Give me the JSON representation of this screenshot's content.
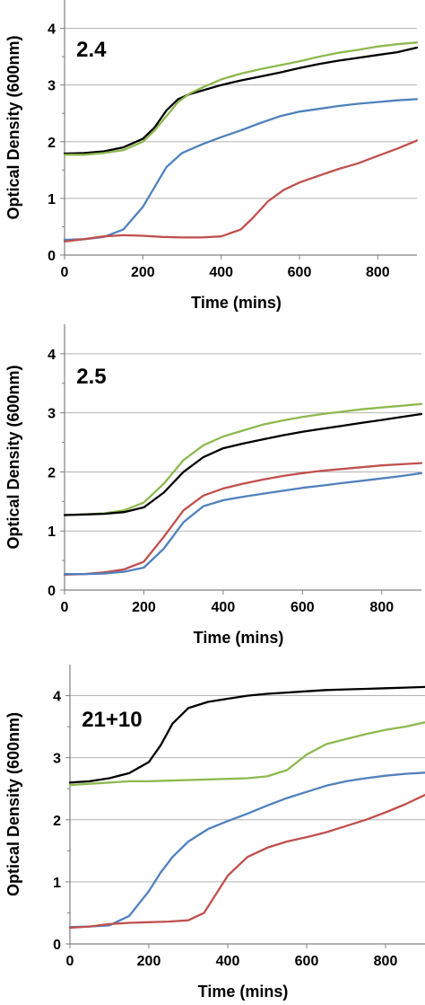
{
  "chart_data": [
    {
      "type": "line",
      "title": "2.4",
      "xlabel": "Time (mins)",
      "ylabel": "Optical Density (600nm)",
      "xlim": [
        0,
        900
      ],
      "ylim": [
        0,
        4.5
      ],
      "xticks": [
        0,
        200,
        400,
        600,
        800
      ],
      "yticks": [
        0,
        1,
        2,
        3,
        4
      ],
      "grid": "horizontal",
      "series": [
        {
          "color": "#000000",
          "x": [
            0,
            50,
            100,
            150,
            200,
            230,
            260,
            290,
            320,
            350,
            400,
            450,
            500,
            550,
            600,
            650,
            700,
            750,
            800,
            850,
            900
          ],
          "y": [
            1.79,
            1.8,
            1.83,
            1.9,
            2.05,
            2.25,
            2.55,
            2.75,
            2.84,
            2.9,
            3.0,
            3.08,
            3.15,
            3.22,
            3.3,
            3.37,
            3.43,
            3.48,
            3.53,
            3.58,
            3.66
          ]
        },
        {
          "color": "#8DB94F",
          "x": [
            0,
            50,
            100,
            150,
            200,
            230,
            260,
            290,
            320,
            350,
            400,
            450,
            500,
            550,
            600,
            650,
            700,
            750,
            800,
            850,
            900
          ],
          "y": [
            1.77,
            1.77,
            1.8,
            1.85,
            2.0,
            2.2,
            2.45,
            2.7,
            2.85,
            2.95,
            3.1,
            3.2,
            3.28,
            3.35,
            3.42,
            3.5,
            3.57,
            3.62,
            3.68,
            3.72,
            3.75
          ]
        },
        {
          "color": "#4F81BD",
          "x": [
            0,
            50,
            100,
            150,
            200,
            230,
            260,
            300,
            350,
            400,
            450,
            500,
            550,
            600,
            650,
            700,
            750,
            800,
            850,
            900
          ],
          "y": [
            0.27,
            0.28,
            0.32,
            0.45,
            0.85,
            1.2,
            1.55,
            1.8,
            1.95,
            2.08,
            2.2,
            2.33,
            2.45,
            2.53,
            2.58,
            2.63,
            2.67,
            2.7,
            2.73,
            2.75
          ]
        },
        {
          "color": "#C0504D",
          "x": [
            0,
            50,
            100,
            150,
            200,
            250,
            300,
            350,
            400,
            450,
            480,
            520,
            560,
            600,
            650,
            700,
            750,
            800,
            850,
            900
          ],
          "y": [
            0.24,
            0.28,
            0.33,
            0.35,
            0.34,
            0.32,
            0.31,
            0.31,
            0.33,
            0.45,
            0.65,
            0.95,
            1.15,
            1.28,
            1.4,
            1.52,
            1.62,
            1.75,
            1.88,
            2.02
          ]
        }
      ]
    },
    {
      "type": "line",
      "title": "2.5",
      "xlabel": "Time (mins)",
      "ylabel": "Optical Density (600nm)",
      "xlim": [
        0,
        900
      ],
      "ylim": [
        0,
        4.5
      ],
      "xticks": [
        0,
        200,
        400,
        600,
        800
      ],
      "yticks": [
        0,
        1,
        2,
        3,
        4
      ],
      "grid": "horizontal",
      "series": [
        {
          "color": "#8DB94F",
          "x": [
            0,
            50,
            100,
            150,
            200,
            250,
            300,
            350,
            400,
            450,
            500,
            550,
            600,
            650,
            700,
            750,
            800,
            850,
            900
          ],
          "y": [
            1.27,
            1.28,
            1.3,
            1.35,
            1.48,
            1.8,
            2.2,
            2.45,
            2.6,
            2.7,
            2.8,
            2.87,
            2.93,
            2.98,
            3.02,
            3.06,
            3.09,
            3.12,
            3.15
          ]
        },
        {
          "color": "#000000",
          "x": [
            0,
            50,
            100,
            150,
            200,
            250,
            300,
            350,
            400,
            450,
            500,
            550,
            600,
            650,
            700,
            750,
            800,
            850,
            900
          ],
          "y": [
            1.27,
            1.28,
            1.29,
            1.32,
            1.4,
            1.65,
            2.0,
            2.25,
            2.4,
            2.48,
            2.55,
            2.62,
            2.68,
            2.73,
            2.78,
            2.83,
            2.88,
            2.93,
            2.98
          ]
        },
        {
          "color": "#C0504D",
          "x": [
            0,
            50,
            100,
            150,
            200,
            250,
            300,
            350,
            400,
            450,
            500,
            550,
            600,
            650,
            700,
            750,
            800,
            850,
            900
          ],
          "y": [
            0.26,
            0.27,
            0.3,
            0.35,
            0.48,
            0.9,
            1.35,
            1.6,
            1.72,
            1.8,
            1.87,
            1.93,
            1.98,
            2.02,
            2.05,
            2.08,
            2.11,
            2.13,
            2.15
          ]
        },
        {
          "color": "#4F81BD",
          "x": [
            0,
            50,
            100,
            150,
            200,
            250,
            300,
            350,
            400,
            450,
            500,
            550,
            600,
            650,
            700,
            750,
            800,
            850,
            900
          ],
          "y": [
            0.27,
            0.27,
            0.28,
            0.31,
            0.38,
            0.7,
            1.15,
            1.42,
            1.52,
            1.58,
            1.63,
            1.68,
            1.73,
            1.77,
            1.81,
            1.85,
            1.89,
            1.93,
            1.98
          ]
        }
      ]
    },
    {
      "type": "line",
      "title": "21+10",
      "xlabel": "Time (mins)",
      "ylabel": "Optical Density (600nm)",
      "xlim": [
        0,
        900
      ],
      "ylim": [
        0,
        4.5
      ],
      "xticks": [
        0,
        200,
        400,
        600,
        800
      ],
      "yticks": [
        0,
        1,
        2,
        3,
        4
      ],
      "grid": "horizontal",
      "series": [
        {
          "color": "#000000",
          "x": [
            0,
            50,
            100,
            150,
            200,
            230,
            260,
            300,
            350,
            400,
            450,
            500,
            550,
            600,
            650,
            700,
            750,
            800,
            850,
            900
          ],
          "y": [
            2.6,
            2.62,
            2.67,
            2.75,
            2.93,
            3.2,
            3.55,
            3.8,
            3.9,
            3.95,
            4.0,
            4.03,
            4.05,
            4.07,
            4.09,
            4.1,
            4.11,
            4.12,
            4.13,
            4.14
          ]
        },
        {
          "color": "#8DB94F",
          "x": [
            0,
            50,
            100,
            150,
            200,
            250,
            300,
            350,
            400,
            450,
            500,
            550,
            600,
            650,
            700,
            750,
            800,
            850,
            900
          ],
          "y": [
            2.56,
            2.58,
            2.6,
            2.62,
            2.62,
            2.63,
            2.64,
            2.65,
            2.66,
            2.67,
            2.7,
            2.8,
            3.05,
            3.22,
            3.3,
            3.38,
            3.45,
            3.5,
            3.57
          ]
        },
        {
          "color": "#4F81BD",
          "x": [
            0,
            50,
            100,
            150,
            200,
            230,
            260,
            300,
            350,
            400,
            450,
            500,
            550,
            600,
            650,
            700,
            750,
            800,
            850,
            900
          ],
          "y": [
            0.27,
            0.28,
            0.3,
            0.45,
            0.85,
            1.15,
            1.4,
            1.65,
            1.85,
            1.98,
            2.1,
            2.23,
            2.35,
            2.45,
            2.55,
            2.62,
            2.67,
            2.71,
            2.74,
            2.76
          ]
        },
        {
          "color": "#C0504D",
          "x": [
            0,
            50,
            100,
            150,
            200,
            250,
            300,
            340,
            370,
            400,
            450,
            500,
            550,
            600,
            650,
            700,
            750,
            800,
            850,
            900
          ],
          "y": [
            0.26,
            0.28,
            0.32,
            0.34,
            0.35,
            0.36,
            0.38,
            0.5,
            0.8,
            1.1,
            1.4,
            1.55,
            1.65,
            1.72,
            1.8,
            1.9,
            2.0,
            2.12,
            2.25,
            2.4
          ]
        }
      ]
    }
  ]
}
